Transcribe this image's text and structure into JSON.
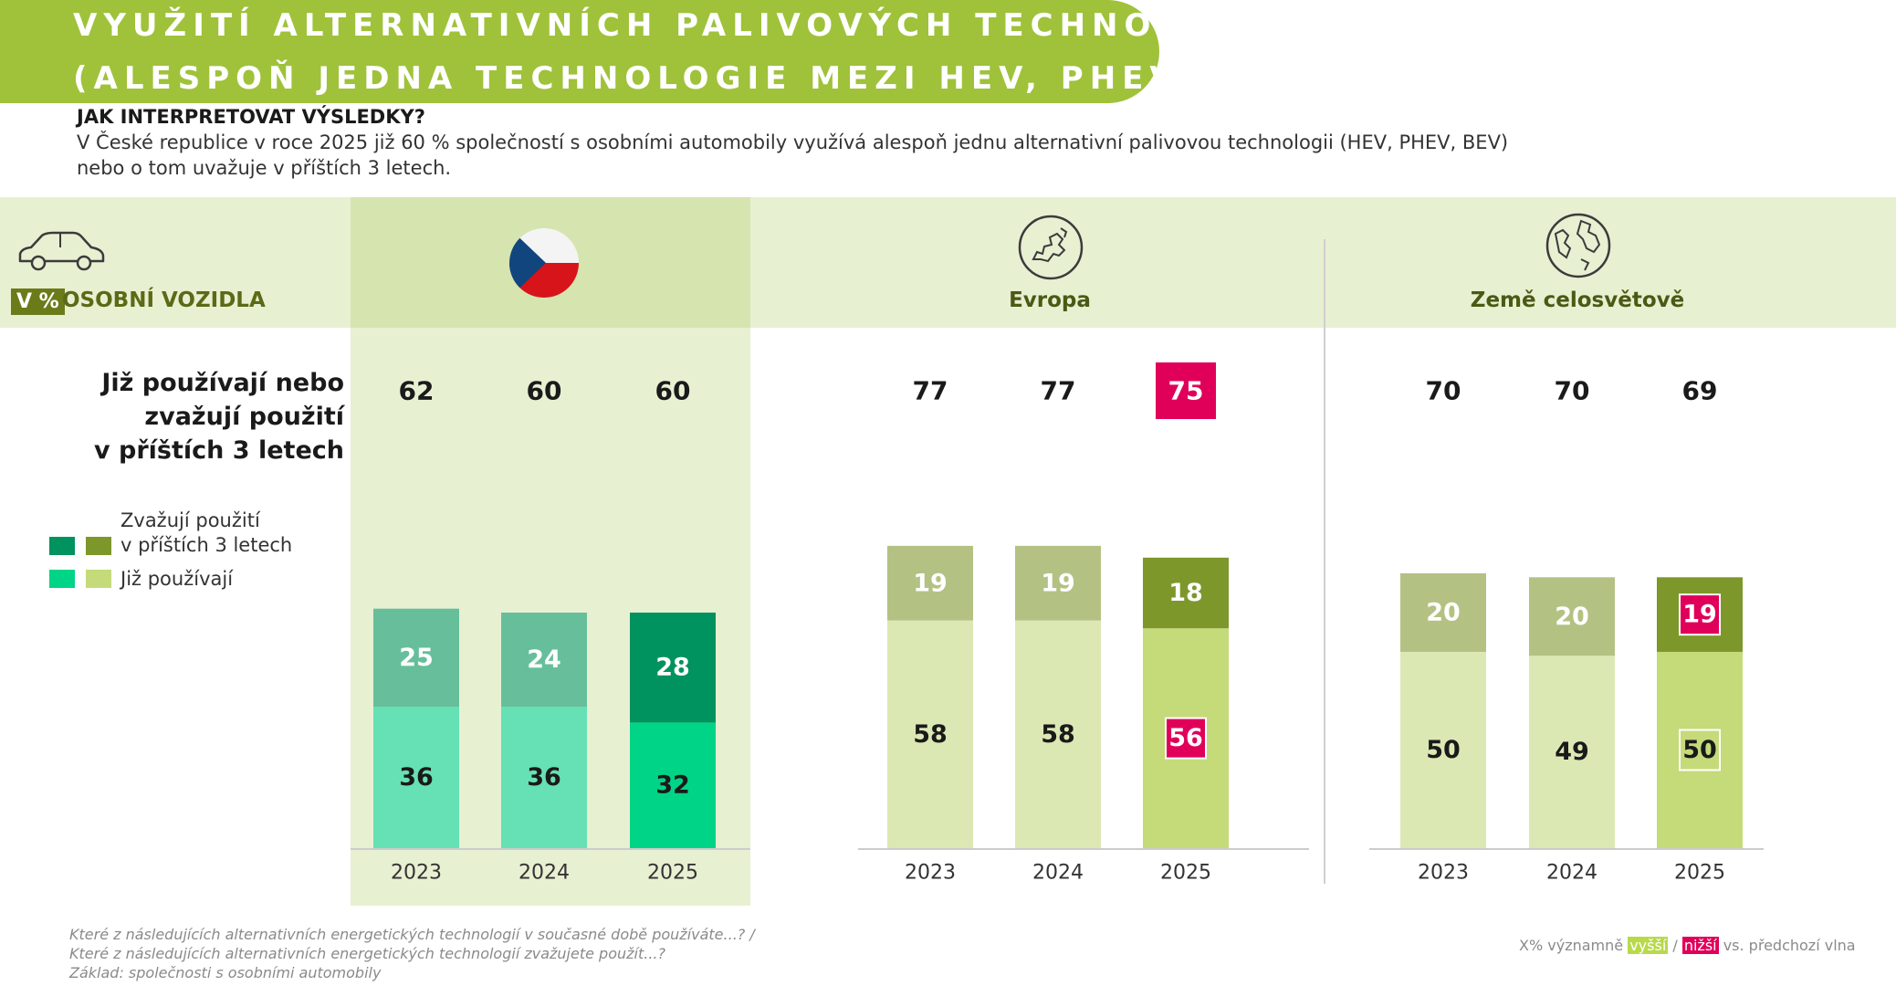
{
  "title": {
    "line1": "VYUŽITÍ ALTERNATIVNÍCH PALIVOVÝCH TECHNOLOGIÍ",
    "line2": "(ALESPOŇ JEDNA TECHNOLOGIE MEZI HEV, PHEV, BEV)"
  },
  "interpretation": {
    "heading": "JAK INTERPRETOVAT VÝSLEDKY?",
    "line1": "V České republice v roce 2025 již 60 % společností s osobními automobily využívá alespoň jednu alternativní palivovou technologii (HEV, PHEV, BEV)",
    "line2": "nebo o tom uvažuje v příštích 3 letech."
  },
  "unit_badge": "V %",
  "segment_label": "OSOBNÍ VOZIDLA",
  "regions": {
    "cz": {
      "label": ""
    },
    "europe": {
      "label": "Evropa"
    },
    "world": {
      "label": "Země celosvětově"
    }
  },
  "row_label": {
    "line1": "Již používají nebo",
    "line2": "zvažují použití",
    "line3": "v příštích 3 letech"
  },
  "legend": {
    "considering_line1": "Zvažují použití",
    "considering_line2": "v příštích 3 letech",
    "using": "Již používají"
  },
  "footer": {
    "line1": "Které z následujících alternativních energetických technologií v současné době používáte...? /",
    "line2": "Které z následujících alternativních energetických technologií zvažujete použít...?",
    "line3": "Základ: společnosti s osobními automobily"
  },
  "significance_legend": {
    "prefix": "X%  významně",
    "higher": "vyšší",
    "sep": "/",
    "lower": "nižší",
    "suffix": "vs. předchozí vlna"
  },
  "colors": {
    "banner": "#9fc23a",
    "cz_using": "#66e0b5",
    "cz_considering": "#66bf9a",
    "cz_using_2025": "#00d486",
    "cz_considering_2025": "#00925f",
    "other_using": "#dce8b4",
    "other_considering": "#b3c283",
    "other_using_2025": "#c5da79",
    "other_considering_2025": "#7e972b",
    "significant_lower": "#e0005a"
  },
  "chart_data": {
    "type": "bar",
    "stacked": true,
    "panels": [
      {
        "region": "Česká republika",
        "categories": [
          "2023",
          "2024",
          "2025"
        ],
        "series": [
          {
            "name": "Již používají",
            "values": [
              36,
              36,
              32
            ]
          },
          {
            "name": "Zvažují použití v příštích 3 letech",
            "values": [
              25,
              24,
              28
            ]
          }
        ],
        "totals": [
          62,
          60,
          60
        ],
        "significant_lower": {
          "totals": [],
          "using": [],
          "considering": []
        },
        "boxed": {
          "using": []
        }
      },
      {
        "region": "Evropa",
        "categories": [
          "2023",
          "2024",
          "2025"
        ],
        "series": [
          {
            "name": "Již používají",
            "values": [
              58,
              58,
              56
            ]
          },
          {
            "name": "Zvažují použití v příštích 3 letech",
            "values": [
              19,
              19,
              18
            ]
          }
        ],
        "totals": [
          77,
          77,
          75
        ],
        "significant_lower": {
          "totals": [
            2
          ],
          "using": [
            2
          ],
          "considering": []
        },
        "boxed": {
          "using": []
        }
      },
      {
        "region": "Země celosvětově",
        "categories": [
          "2023",
          "2024",
          "2025"
        ],
        "series": [
          {
            "name": "Již používají",
            "values": [
              50,
              49,
              50
            ]
          },
          {
            "name": "Zvažují použití v příštích 3 letech",
            "values": [
              20,
              20,
              19
            ]
          }
        ],
        "totals": [
          70,
          70,
          69
        ],
        "significant_lower": {
          "totals": [],
          "using": [],
          "considering": [
            2
          ]
        },
        "boxed": {
          "using": [
            2
          ]
        }
      }
    ]
  }
}
